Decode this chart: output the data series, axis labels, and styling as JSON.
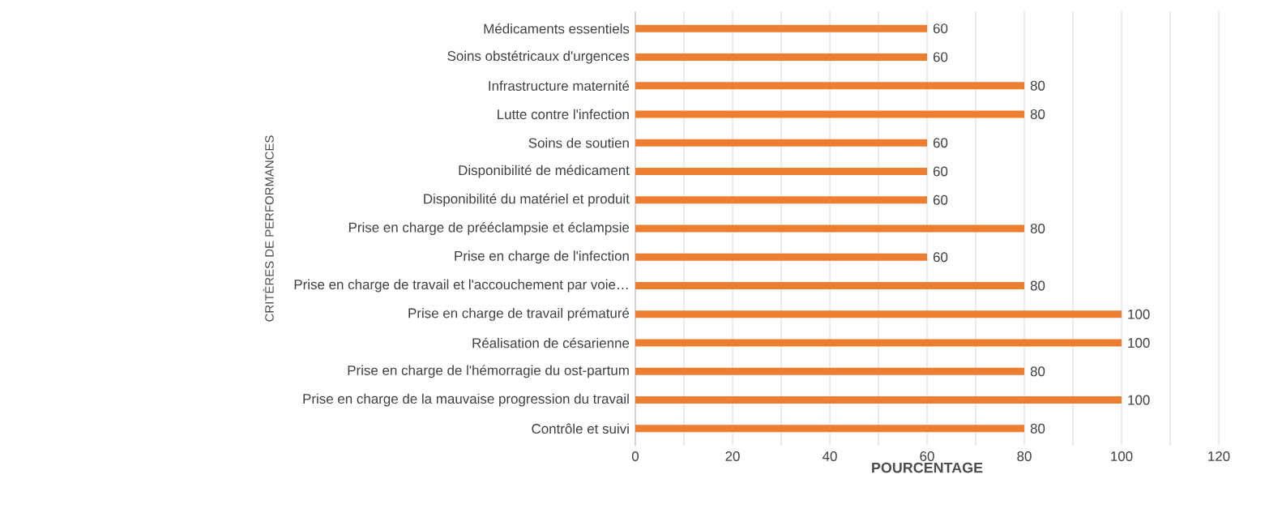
{
  "chart_data": {
    "type": "bar",
    "orientation": "horizontal",
    "xlabel": "POURCENTAGE",
    "ylabel": "CRITÈRES DE PERFORMANCES",
    "categories": [
      "Médicaments essentiels",
      "Soins obstétricaux d'urgences",
      "Infrastructure maternité",
      "Lutte contre l'infection",
      "Soins de soutien",
      "Disponibilité de médicament",
      "Disponibilité du matériel et produit",
      "Prise en charge de prééclampsie et éclampsie",
      "Prise en charge de l'infection",
      "Prise en charge de travail et l'accouchement par voie…",
      "Prise en charge de travail prématuré",
      "Réalisation de césarienne",
      "Prise en charge de l'hémorragie du ost-partum",
      "Prise en charge de la mauvaise progression du travail",
      "Contrôle et suivi"
    ],
    "values": [
      60,
      60,
      80,
      80,
      60,
      60,
      60,
      80,
      60,
      80,
      100,
      100,
      80,
      100,
      80
    ],
    "color": "#ed7d31",
    "data_labels": true,
    "grid": "x",
    "xlim": [
      0,
      120
    ],
    "xticks": [
      0,
      {
        "value": 10,
        "label": null
      },
      20,
      {
        "value": 30,
        "label": null
      },
      40,
      {
        "value": 50,
        "label": null
      },
      60,
      {
        "value": 70,
        "label": null
      },
      80,
      {
        "value": 90,
        "label": null
      },
      100,
      {
        "value": 110,
        "label": null
      },
      120
    ]
  }
}
